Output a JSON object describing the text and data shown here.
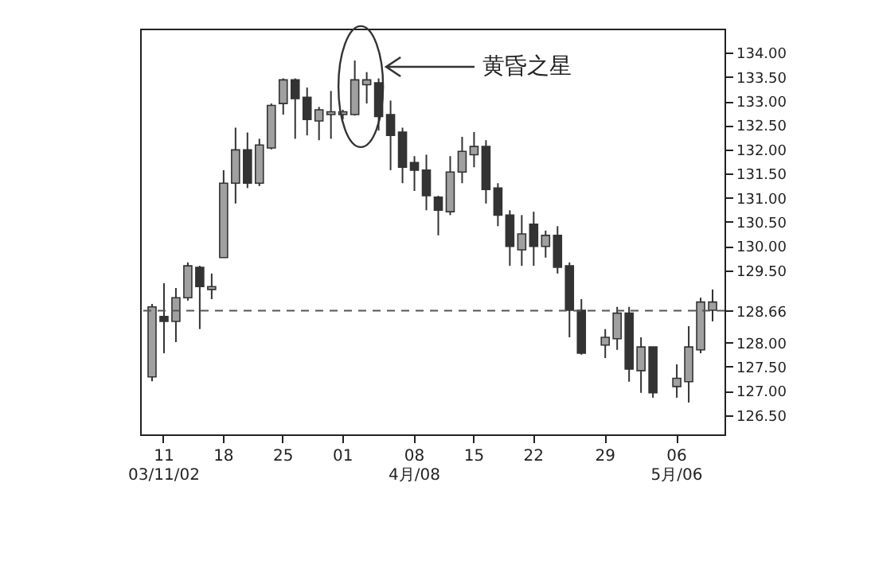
{
  "chart_data": {
    "type": "candlestick",
    "categories": [
      null,
      "11\n03/11/02",
      null,
      null,
      null,
      null,
      "18",
      null,
      null,
      null,
      null,
      "25",
      null,
      null,
      null,
      null,
      "01",
      null,
      null,
      null,
      null,
      null,
      "08\n4月/08",
      null,
      null,
      null,
      null,
      "15",
      null,
      null,
      null,
      null,
      "22",
      null,
      null,
      null,
      null,
      null,
      "29",
      null,
      null,
      null,
      null,
      null,
      "06\n5月/06",
      null,
      null,
      null
    ],
    "ohlc": [
      [
        127.29,
        128.8,
        127.2,
        128.74
      ],
      [
        128.54,
        129.23,
        127.78,
        128.44
      ],
      [
        128.44,
        129.13,
        128.01,
        128.93
      ],
      [
        128.93,
        129.66,
        128.87,
        129.59
      ],
      [
        129.56,
        129.59,
        128.28,
        129.16
      ],
      [
        129.1,
        129.43,
        128.9,
        129.16
      ],
      [
        129.76,
        131.57,
        129.76,
        131.3
      ],
      [
        131.3,
        132.45,
        130.88,
        131.99
      ],
      [
        131.99,
        132.35,
        131.2,
        131.3
      ],
      [
        131.3,
        132.22,
        131.24,
        132.09
      ],
      [
        132.03,
        132.95,
        132.0,
        132.91
      ],
      [
        132.95,
        133.47,
        132.72,
        133.44
      ],
      [
        133.44,
        133.47,
        132.22,
        133.05
      ],
      [
        133.08,
        133.28,
        132.29,
        132.62
      ],
      [
        132.59,
        132.88,
        132.19,
        132.82
      ],
      [
        132.72,
        133.21,
        132.22,
        132.78
      ],
      [
        132.72,
        132.82,
        132.62,
        132.78
      ],
      [
        132.72,
        133.84,
        132.7,
        133.44
      ],
      [
        133.34,
        133.6,
        132.95,
        133.44
      ],
      [
        133.38,
        133.47,
        132.39,
        132.68
      ],
      [
        132.72,
        133.01,
        131.57,
        132.29
      ],
      [
        132.36,
        132.45,
        131.3,
        131.63
      ],
      [
        131.73,
        131.86,
        131.14,
        131.57
      ],
      [
        131.57,
        131.89,
        130.74,
        131.04
      ],
      [
        131.01,
        131.04,
        130.22,
        130.74
      ],
      [
        130.71,
        131.86,
        130.64,
        131.53
      ],
      [
        131.53,
        132.26,
        131.3,
        131.96
      ],
      [
        131.89,
        132.36,
        131.63,
        132.06
      ],
      [
        132.06,
        132.19,
        130.88,
        131.17
      ],
      [
        131.2,
        131.3,
        130.41,
        130.64
      ],
      [
        130.64,
        130.74,
        129.59,
        129.99
      ],
      [
        129.92,
        130.64,
        129.59,
        130.25
      ],
      [
        130.45,
        130.71,
        129.59,
        129.99
      ],
      [
        129.99,
        130.32,
        129.76,
        130.22
      ],
      [
        130.22,
        130.41,
        129.43,
        129.56
      ],
      [
        129.59,
        129.66,
        128.11,
        128.67
      ],
      [
        128.67,
        128.9,
        127.75,
        127.78
      ],
      null,
      [
        127.95,
        128.28,
        127.68,
        128.11
      ],
      [
        128.08,
        128.74,
        127.85,
        128.61
      ],
      [
        128.61,
        128.74,
        127.19,
        127.45
      ],
      [
        127.42,
        128.11,
        126.96,
        127.91
      ],
      [
        127.91,
        127.91,
        126.86,
        126.96
      ],
      null,
      [
        127.09,
        127.55,
        126.86,
        127.26
      ],
      [
        127.19,
        128.34,
        126.76,
        127.91
      ],
      [
        127.85,
        128.93,
        127.78,
        128.84
      ],
      [
        128.67,
        129.1,
        128.44,
        128.84
      ]
    ],
    "colors": [
      "#a0a0a0",
      "#333333",
      "#a0a0a0",
      "#a0a0a0",
      "#333333",
      "#a0a0a0",
      "#a0a0a0",
      "#a0a0a0",
      "#333333",
      "#a0a0a0",
      "#a0a0a0",
      "#a0a0a0",
      "#333333",
      "#333333",
      "#a0a0a0",
      "#a0a0a0",
      "#a0a0a0",
      "#a0a0a0",
      "#a0a0a0",
      "#333333",
      "#333333",
      "#333333",
      "#333333",
      "#333333",
      "#333333",
      "#a0a0a0",
      "#a0a0a0",
      "#a0a0a0",
      "#333333",
      "#333333",
      "#333333",
      "#a0a0a0",
      "#333333",
      "#a0a0a0",
      "#333333",
      "#333333",
      "#333333",
      null,
      "#a0a0a0",
      "#a0a0a0",
      "#333333",
      "#a0a0a0",
      "#333333",
      null,
      "#a0a0a0",
      "#a0a0a0",
      "#a0a0a0",
      "#a0a0a0"
    ],
    "ylim": [
      126.1,
      134.5
    ],
    "yticks": [
      {
        "value": 126.5,
        "label": "126.50"
      },
      {
        "value": 127,
        "label": "127.00"
      },
      {
        "value": 127.5,
        "label": "127.50"
      },
      {
        "value": 128,
        "label": "128.00"
      },
      {
        "value": 128.66,
        "label": "128.66"
      },
      {
        "value": 129.5,
        "label": "129.50"
      },
      {
        "value": 130,
        "label": "130.00"
      },
      {
        "value": 130.5,
        "label": "130.50"
      },
      {
        "value": 131,
        "label": "131.00"
      },
      {
        "value": 131.5,
        "label": "131.50"
      },
      {
        "value": 132,
        "label": "132.00"
      },
      {
        "value": 132.5,
        "label": "132.50"
      },
      {
        "value": 133,
        "label": "133.00"
      },
      {
        "value": 133.5,
        "label": "133.50"
      },
      {
        "value": 134,
        "label": "134.00"
      }
    ],
    "ref_lines": [
      {
        "axis": "y",
        "value": 128.66,
        "color": "#555555",
        "line_style": "dashed"
      }
    ],
    "annotations": [
      "黄昏之星"
    ],
    "grid": false
  }
}
